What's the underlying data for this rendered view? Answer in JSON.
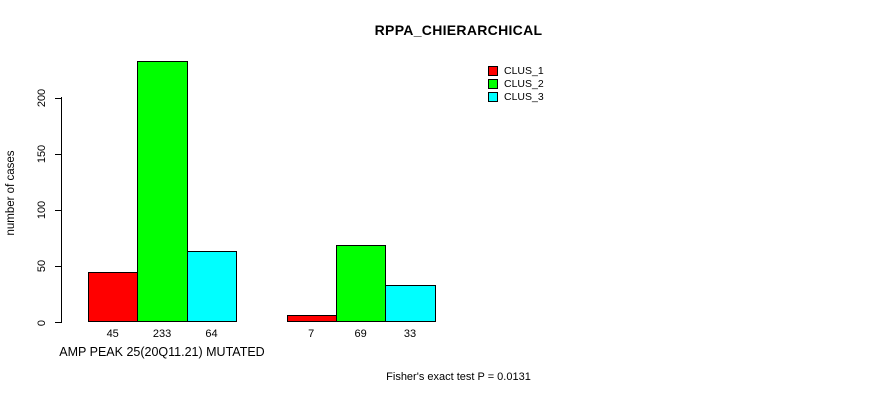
{
  "title": "RPPA_CHIERARCHICAL",
  "footer": "Fisher's exact test P = 0.0131",
  "chart_data": {
    "type": "bar",
    "title": "RPPA_CHIERARCHICAL",
    "ylabel": "number of cases",
    "xlabel": "",
    "categories": [
      "AMP PEAK 25(20Q11.21) MUTATED",
      ""
    ],
    "series": [
      {
        "name": "CLUS_1",
        "color": "#ff0000",
        "values": [
          45,
          7
        ]
      },
      {
        "name": "CLUS_2",
        "color": "#00ff00",
        "values": [
          233,
          69
        ]
      },
      {
        "name": "CLUS_3",
        "color": "#00ffff",
        "values": [
          64,
          33
        ]
      }
    ],
    "bar_value_labels": [
      [
        45,
        233,
        64
      ],
      [
        7,
        69,
        33
      ]
    ],
    "yticks": [
      0,
      50,
      100,
      150,
      200
    ],
    "ylim": [
      0,
      233
    ],
    "grid": false,
    "legend_position": "top-right",
    "annotation": "Fisher's exact test P = 0.0131"
  }
}
